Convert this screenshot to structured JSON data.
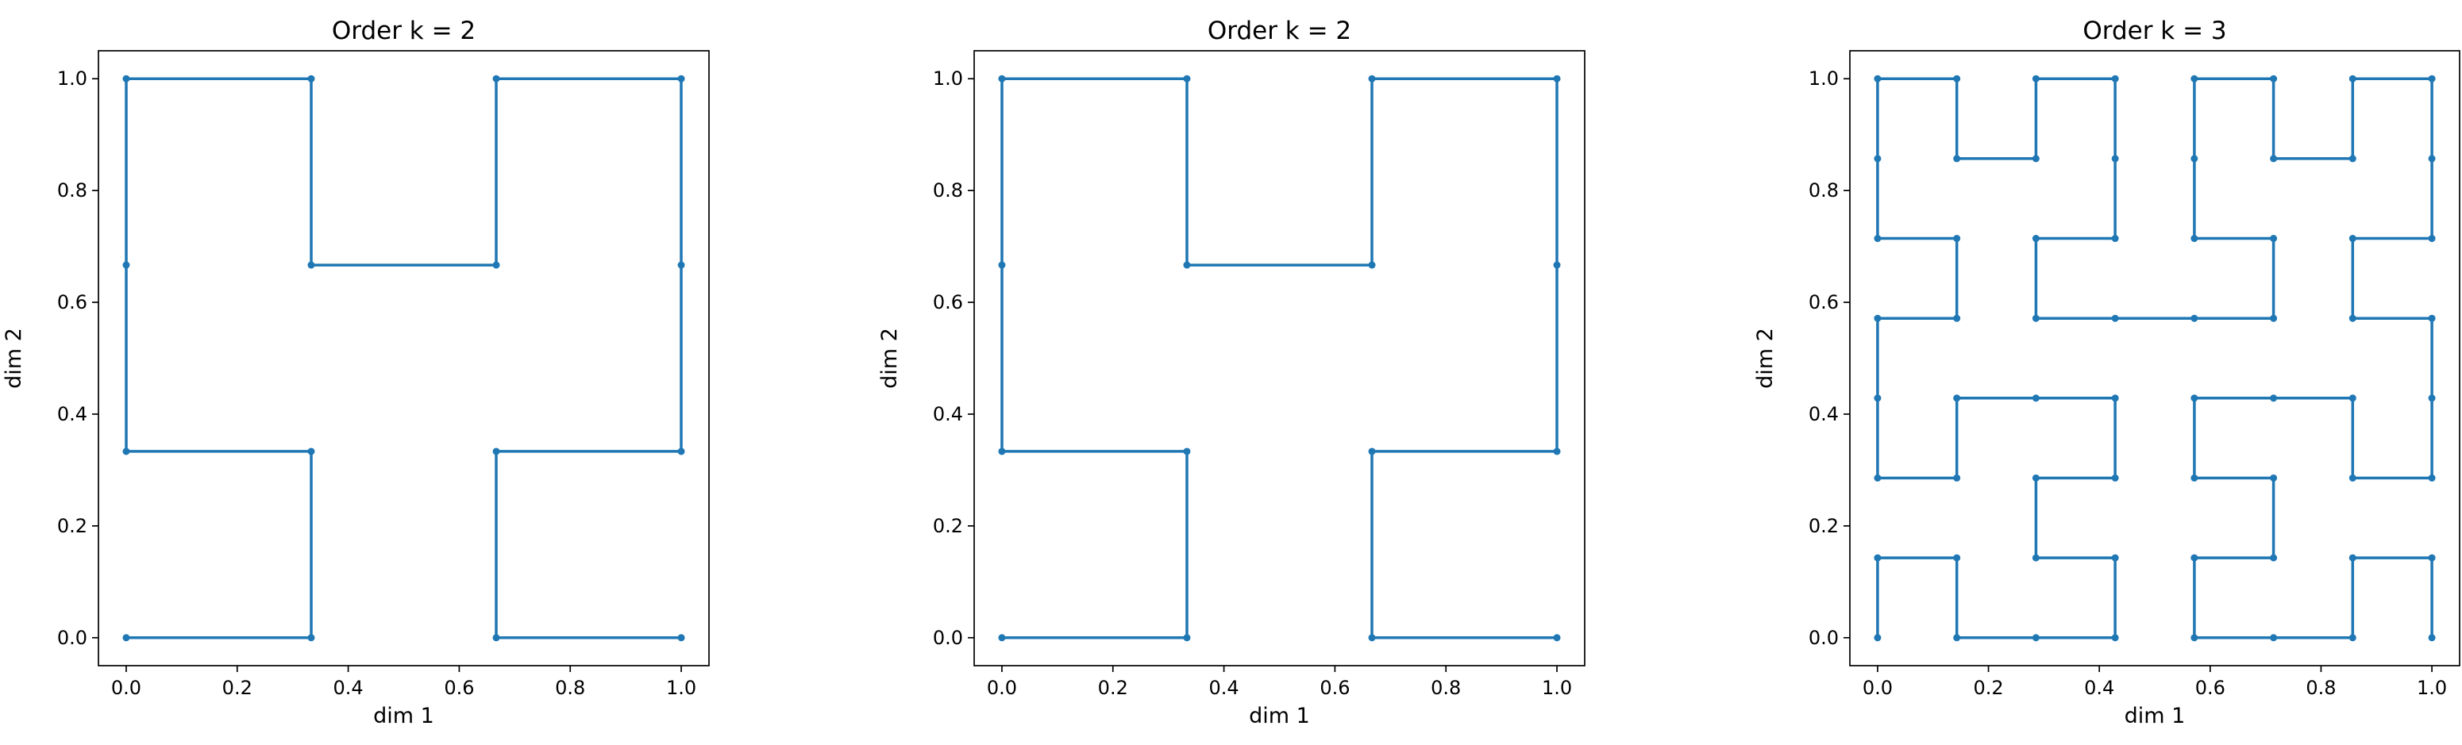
{
  "colors": {
    "series": "#1f77b4",
    "axes": "#000000",
    "background": "#ffffff"
  },
  "chart_data": [
    {
      "type": "line",
      "title": "Order k = 2",
      "xlabel": "dim 1",
      "ylabel": "dim 2",
      "xlim": [
        -0.05,
        1.05
      ],
      "ylim": [
        -0.05,
        1.05
      ],
      "xticks": [
        "0.0",
        "0.2",
        "0.4",
        "0.6",
        "0.8",
        "1.0"
      ],
      "yticks": [
        "0.0",
        "0.2",
        "0.4",
        "0.6",
        "0.8",
        "1.0"
      ],
      "grid": false,
      "marker": "dot",
      "points": [
        [
          0,
          0
        ],
        [
          0.3333,
          0
        ],
        [
          0.3333,
          0.3333
        ],
        [
          0,
          0.3333
        ],
        [
          0,
          0.6667
        ],
        [
          0,
          1
        ],
        [
          0.3333,
          1
        ],
        [
          0.3333,
          0.6667
        ],
        [
          0.6667,
          0.6667
        ],
        [
          0.6667,
          1
        ],
        [
          1,
          1
        ],
        [
          1,
          0.6667
        ],
        [
          1,
          0.3333
        ],
        [
          0.6667,
          0.3333
        ],
        [
          0.6667,
          0
        ],
        [
          1,
          0
        ]
      ]
    },
    {
      "type": "line",
      "title": "Order k = 2",
      "xlabel": "dim 1",
      "ylabel": "dim 2",
      "xlim": [
        -0.05,
        1.05
      ],
      "ylim": [
        -0.05,
        1.05
      ],
      "xticks": [
        "0.0",
        "0.2",
        "0.4",
        "0.6",
        "0.8",
        "1.0"
      ],
      "yticks": [
        "0.0",
        "0.2",
        "0.4",
        "0.6",
        "0.8",
        "1.0"
      ],
      "grid": false,
      "marker": "dot",
      "points": [
        [
          0,
          0
        ],
        [
          0.3333,
          0
        ],
        [
          0.3333,
          0.3333
        ],
        [
          0,
          0.3333
        ],
        [
          0,
          0.6667
        ],
        [
          0,
          1
        ],
        [
          0.3333,
          1
        ],
        [
          0.3333,
          0.6667
        ],
        [
          0.6667,
          0.6667
        ],
        [
          0.6667,
          1
        ],
        [
          1,
          1
        ],
        [
          1,
          0.6667
        ],
        [
          1,
          0.3333
        ],
        [
          0.6667,
          0.3333
        ],
        [
          0.6667,
          0
        ],
        [
          1,
          0
        ]
      ]
    },
    {
      "type": "line",
      "title": "Order k = 3",
      "xlabel": "dim 1",
      "ylabel": "dim 2",
      "xlim": [
        -0.05,
        1.05
      ],
      "ylim": [
        -0.05,
        1.05
      ],
      "xticks": [
        "0.0",
        "0.2",
        "0.4",
        "0.6",
        "0.8",
        "1.0"
      ],
      "yticks": [
        "0.0",
        "0.2",
        "0.4",
        "0.6",
        "0.8",
        "1.0"
      ],
      "grid": false,
      "marker": "dot",
      "points": [
        [
          0,
          0
        ],
        [
          0,
          0.1429
        ],
        [
          0.1429,
          0.1429
        ],
        [
          0.1429,
          0
        ],
        [
          0.2857,
          0
        ],
        [
          0.4286,
          0
        ],
        [
          0.4286,
          0.1429
        ],
        [
          0.2857,
          0.1429
        ],
        [
          0.2857,
          0.2857
        ],
        [
          0.4286,
          0.2857
        ],
        [
          0.4286,
          0.4286
        ],
        [
          0.2857,
          0.4286
        ],
        [
          0.1429,
          0.4286
        ],
        [
          0.1429,
          0.2857
        ],
        [
          0,
          0.2857
        ],
        [
          0,
          0.4286
        ],
        [
          0,
          0.5714
        ],
        [
          0.1429,
          0.5714
        ],
        [
          0.1429,
          0.7143
        ],
        [
          0,
          0.7143
        ],
        [
          0,
          0.8571
        ],
        [
          0,
          1
        ],
        [
          0.1429,
          1
        ],
        [
          0.1429,
          0.8571
        ],
        [
          0.2857,
          0.8571
        ],
        [
          0.2857,
          1
        ],
        [
          0.4286,
          1
        ],
        [
          0.4286,
          0.8571
        ],
        [
          0.4286,
          0.7143
        ],
        [
          0.2857,
          0.7143
        ],
        [
          0.2857,
          0.5714
        ],
        [
          0.4286,
          0.5714
        ],
        [
          0.5714,
          0.5714
        ],
        [
          0.7143,
          0.5714
        ],
        [
          0.7143,
          0.7143
        ],
        [
          0.5714,
          0.7143
        ],
        [
          0.5714,
          0.8571
        ],
        [
          0.5714,
          1
        ],
        [
          0.7143,
          1
        ],
        [
          0.7143,
          0.8571
        ],
        [
          0.8571,
          0.8571
        ],
        [
          0.8571,
          1
        ],
        [
          1,
          1
        ],
        [
          1,
          0.8571
        ],
        [
          1,
          0.7143
        ],
        [
          0.8571,
          0.7143
        ],
        [
          0.8571,
          0.5714
        ],
        [
          1,
          0.5714
        ],
        [
          1,
          0.4286
        ],
        [
          1,
          0.2857
        ],
        [
          0.8571,
          0.2857
        ],
        [
          0.8571,
          0.4286
        ],
        [
          0.7143,
          0.4286
        ],
        [
          0.5714,
          0.4286
        ],
        [
          0.5714,
          0.2857
        ],
        [
          0.7143,
          0.2857
        ],
        [
          0.7143,
          0.1429
        ],
        [
          0.5714,
          0.1429
        ],
        [
          0.5714,
          0
        ],
        [
          0.7143,
          0
        ],
        [
          0.8571,
          0
        ],
        [
          0.8571,
          0.1429
        ],
        [
          1,
          0.1429
        ],
        [
          1,
          0
        ]
      ]
    }
  ]
}
